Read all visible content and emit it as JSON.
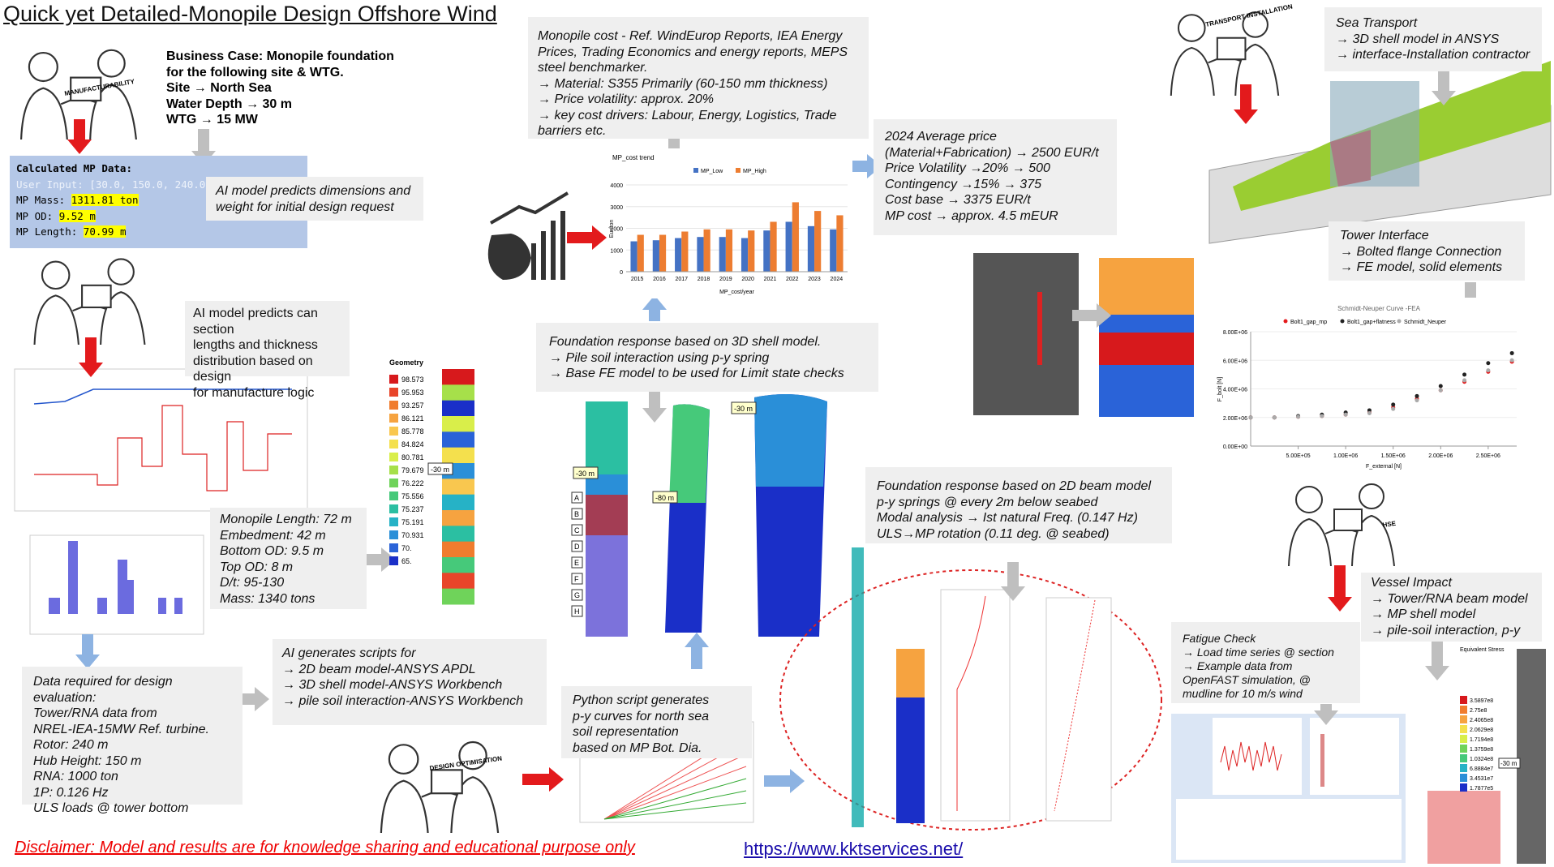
{
  "title": "Quick yet Detailed-Monopile Design Offshore Wind",
  "business_case": [
    "Business Case: Monopile foundation",
    "for the following site & WTG.",
    "Site → North Sea",
    "Water Depth → 30 m",
    "WTG → 15 MW"
  ],
  "calculated": {
    "heading": "Calculated MP Data:",
    "user_input": "User Input: [30.0, 150.0, 240.0,",
    "rows": [
      {
        "label": "MP Mass:",
        "value": "1311.81 ton"
      },
      {
        "label": "MP OD:",
        "value": "9.52 m"
      },
      {
        "label": "MP Length:",
        "value": "70.99 m"
      }
    ]
  },
  "ai_dimensions": [
    "AI model predicts dimensions and",
    "weight for initial design request"
  ],
  "ai_sections": [
    "AI model predicts can section",
    "lengths and thickness",
    "distribution based on design",
    "for manufacture logic"
  ],
  "monopile_summary": [
    "Monopile Length: 72 m",
    "Embedment: 42 m",
    "Bottom OD: 9.5 m",
    "Top OD: 8 m",
    "D/t: 95-130",
    "Mass: 1340 tons"
  ],
  "design_data": [
    "Data required for design evaluation:",
    "Tower/RNA data from",
    "NREL-IEA-15MW Ref. turbine.",
    "Rotor: 240 m",
    "Hub Height: 150 m",
    "RNA: 1000 ton",
    "1P: 0.126 Hz",
    "ULS loads @ tower bottom"
  ],
  "ai_scripts": [
    "AI generates scripts for",
    "→ 2D beam model-ANSYS APDL",
    "→ 3D shell model-ANSYS Workbench",
    "→ pile soil interaction-ANSYS Workbench"
  ],
  "cost_sources": [
    "Monopile cost - Ref. WindEurop Reports, IEA Energy",
    "Prices, Trading Economics and energy reports, MEPS",
    "steel benchmarker.",
    "→ Material: S355 Primarily (60-150 mm thickness)",
    "→ Price volatility: approx. 20%",
    "→ key cost drivers: Labour, Energy, Logistics, Trade",
    "barriers etc."
  ],
  "price_2024": [
    "2024 Average price",
    "(Material+Fabrication) → 2500 EUR/t",
    "Price Volatility →20% → 500",
    "Contingency →15% → 375",
    "Cost base → 3375 EUR/t",
    "MP cost → approx. 4.5 mEUR"
  ],
  "shell_response": [
    "Foundation response based on 3D shell model.",
    "→ Pile soil interaction using p-y spring",
    "→ Base FE model to be used for Limit state checks"
  ],
  "py_script": [
    "Python script generates",
    "p-y curves for north sea",
    "soil representation",
    "based on MP Bot. Dia."
  ],
  "beam_response": [
    "Foundation response based on 2D beam model",
    "p-y springs @ every 2m below seabed",
    "Modal analysis → Ist natural Freq. (0.147 Hz)",
    "ULS→MP rotation (0.11 deg. @ seabed)"
  ],
  "sea_transport": [
    "Sea Transport",
    "→ 3D shell model in ANSYS",
    "→ interface-Installation contractor"
  ],
  "tower_interface": [
    "Tower Interface",
    "→ Bolted flange Connection",
    "→ FE model, solid elements"
  ],
  "vessel_impact": [
    "Vessel Impact",
    "→ Tower/RNA beam model",
    "→ MP shell model",
    "→ pile-soil interaction, p-y"
  ],
  "fatigue": [
    "Fatigue Check",
    "→ Load time series @ section",
    "→ Example data from",
    "OpenFAST simulation, @",
    "mudline for 10 m/s wind"
  ],
  "sketch_labels": [
    "MANUFACTURABILITY",
    "TRANSPORT INSTALLATION",
    "HSE",
    "DESIGN OPTIMISATION"
  ],
  "geometry_legend": {
    "title": "Geometry",
    "labels": [
      "98.573",
      "95.953",
      "93.257",
      "86.121",
      "85.778",
      "84.824",
      "80.781",
      "79.679",
      "76.222",
      "75.556",
      "75.237",
      "75.191",
      "70.931",
      "70.",
      "65."
    ],
    "colors": [
      "#d7191c",
      "#e8452a",
      "#f07c2e",
      "#f6a340",
      "#f9c74f",
      "#f4e04d",
      "#d9ee4a",
      "#a6e04a",
      "#6fd35a",
      "#46c97a",
      "#2bbfa2",
      "#26b2c6",
      "#2a8fd8",
      "#2a63d8",
      "#1a2fc8"
    ],
    "marker": "-30 m"
  },
  "shell_labels": [
    "-30 m",
    "-80 m",
    "-30 m"
  ],
  "section_letters": [
    "A",
    "B",
    "C",
    "D",
    "E",
    "F",
    "G",
    "H"
  ],
  "stress_legend": {
    "title": "Equivalent Stress",
    "labels": [
      "3.5897e8",
      "2.75e8",
      "2.4065e8",
      "2.0629e8",
      "1.7194e8",
      "1.3759e8",
      "1.0324e8",
      "6.8884e7",
      "3.4531e7",
      "1.7877e5"
    ],
    "marker": "-30 m"
  },
  "cost_chart": {
    "type": "bar",
    "title": "MP_cost trend",
    "categories": [
      "2015",
      "2016",
      "2017",
      "2018",
      "2019",
      "2020",
      "2021",
      "2022",
      "2023",
      "2024"
    ],
    "series": [
      {
        "name": "MP_Low",
        "color": "#4472c4",
        "values": [
          1400,
          1450,
          1550,
          1600,
          1600,
          1550,
          1900,
          2300,
          2100,
          1950
        ]
      },
      {
        "name": "MP_High",
        "color": "#ed7d31",
        "values": [
          1700,
          1700,
          1850,
          1950,
          1950,
          1900,
          2300,
          3200,
          2800,
          2600
        ]
      }
    ],
    "ylim": [
      0,
      4000
    ],
    "yticks": [
      0,
      1000,
      2000,
      3000,
      4000
    ],
    "ylabel": "Eur/ton",
    "xlabel": "MP_cost/year"
  },
  "fe_chart": {
    "type": "scatter",
    "title": "Schmidt-Neuper Curve -FEA",
    "x": [
      0,
      250000,
      500000,
      750000,
      1000000,
      1250000,
      1500000,
      1750000,
      2000000,
      2250000,
      2500000,
      2750000
    ],
    "series": [
      {
        "name": "Bolt1_gap_mp",
        "color": "#e41a1c",
        "values": [
          2000000,
          2000000,
          2050000,
          2100000,
          2200000,
          2350000,
          2700000,
          3300000,
          3900000,
          4500000,
          5200000,
          5900000
        ]
      },
      {
        "name": "Bolt1_gap+flatness",
        "color": "#222222",
        "values": [
          2000000,
          2000000,
          2100000,
          2200000,
          2350000,
          2500000,
          2900000,
          3500000,
          4200000,
          5000000,
          5800000,
          6500000
        ]
      },
      {
        "name": "Schmidt_Neuper",
        "color": "#aaaaaa",
        "values": [
          2000000,
          2000000,
          2050000,
          2100000,
          2200000,
          2300000,
          2600000,
          3200000,
          3900000,
          4600000,
          5300000,
          6000000
        ]
      }
    ],
    "xlim": [
      0,
      2800000
    ],
    "ylim": [
      0,
      8000000
    ],
    "xticks": [
      {
        "value": 500000,
        "label": "5.00E+05"
      },
      {
        "value": 1000000,
        "label": "1.00E+06"
      },
      {
        "value": 1500000,
        "label": "1.50E+06"
      },
      {
        "value": 2000000,
        "label": "2.00E+06"
      },
      {
        "value": 2500000,
        "label": "2.50E+06"
      }
    ],
    "yticks": [
      {
        "value": 0,
        "label": "0.00E+00"
      },
      {
        "value": 2000000,
        "label": "2.00E+06"
      },
      {
        "value": 4000000,
        "label": "4.00E+06"
      },
      {
        "value": 6000000,
        "label": "6.00E+06"
      },
      {
        "value": 8000000,
        "label": "8.00E+06"
      }
    ],
    "xlabel": "F_external [N]",
    "ylabel": "F_bolt [N]"
  },
  "disclaimer": "Disclaimer: Model and results are for knowledge sharing and educational purpose only",
  "url": "https://www.kktservices.net/"
}
